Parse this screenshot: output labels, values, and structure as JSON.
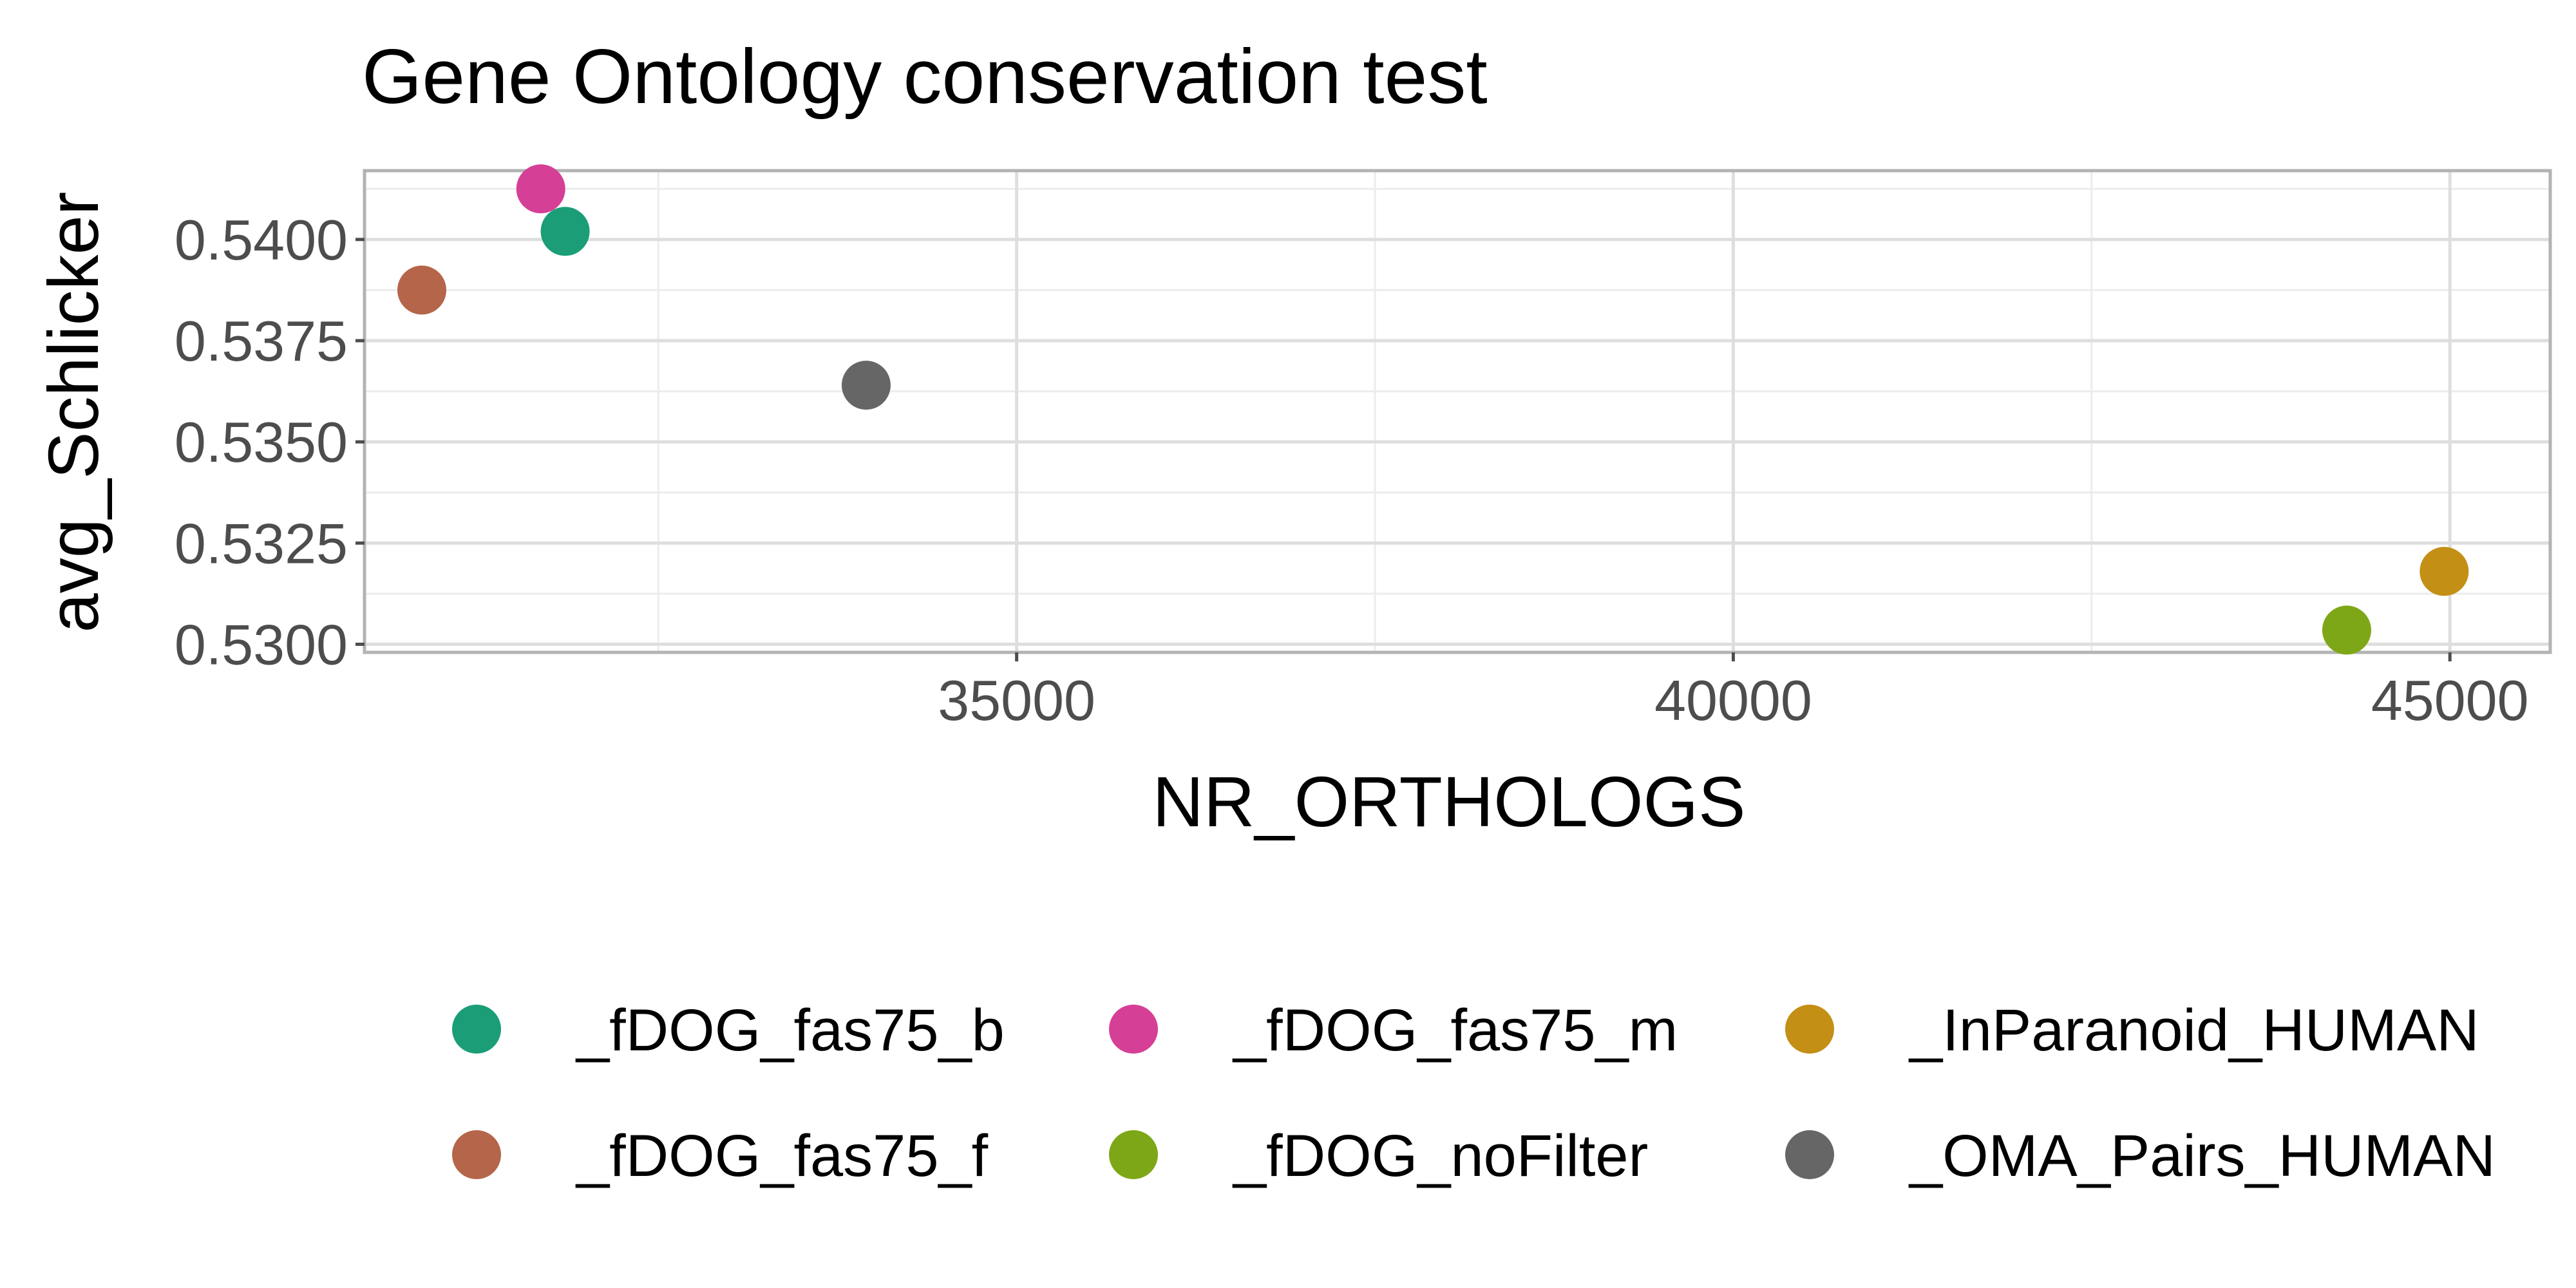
{
  "chart_data": {
    "type": "scatter",
    "title": "Gene Ontology conservation test",
    "xlabel": "NR_ORTHOLOGS",
    "ylabel": "avg_Schlicker",
    "xlim": [
      30450,
      45700
    ],
    "ylim": [
      0.5298,
      0.5417
    ],
    "x_ticks": [
      35000,
      40000,
      45000
    ],
    "x_tick_labels": [
      "35000",
      "40000",
      "45000"
    ],
    "x_minor_ticks": [
      32500,
      37500,
      42500
    ],
    "y_ticks": [
      0.53,
      0.5325,
      0.535,
      0.5375,
      0.54
    ],
    "y_tick_labels": [
      "0.5300",
      "0.5325",
      "0.5350",
      "0.5375",
      "0.5400"
    ],
    "y_minor_ticks": [
      0.53125,
      0.53375,
      0.53625,
      0.53875,
      0.54125
    ],
    "grid": true,
    "legend_position": "bottom",
    "series": [
      {
        "name": "_fDOG_fas75_b",
        "color": "#1b9e77",
        "x": [
          31850
        ],
        "y": [
          0.5402
        ]
      },
      {
        "name": "_fDOG_fas75_f",
        "color": "#b5654a",
        "x": [
          30850
        ],
        "y": [
          0.53875
        ]
      },
      {
        "name": "_fDOG_fas75_m",
        "color": "#d63f96",
        "x": [
          31680
        ],
        "y": [
          0.54125
        ]
      },
      {
        "name": "_fDOG_noFilter",
        "color": "#7ea717",
        "x": [
          44280
        ],
        "y": [
          0.53035
        ]
      },
      {
        "name": "_InParanoid_HUMAN",
        "color": "#c38f15",
        "x": [
          44960
        ],
        "y": [
          0.5318
        ]
      },
      {
        "name": "_OMA_Pairs_HUMAN",
        "color": "#666666",
        "x": [
          33950
        ],
        "y": [
          0.5364
        ]
      }
    ]
  }
}
